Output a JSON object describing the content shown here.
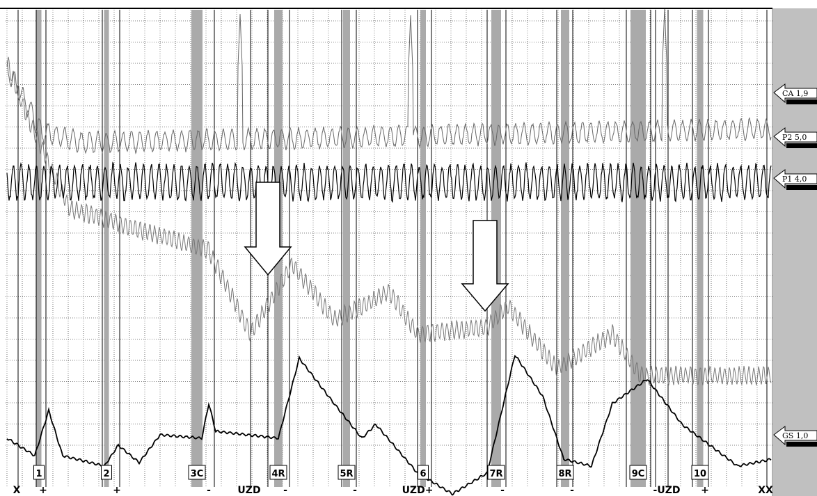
{
  "channels": [
    "CA 1,9",
    "P2 5,0",
    "P1 4,0",
    "GS 1,0"
  ],
  "questions": [
    "1",
    "2",
    "3C",
    "4R",
    "5R",
    "6",
    "7R",
    "8R",
    "9C",
    "10"
  ],
  "marks": [
    "X",
    "+",
    "+",
    "-",
    "UZD",
    "-",
    "-",
    "UZD+",
    "-",
    "-",
    "-UZD",
    "+",
    "XX"
  ]
}
